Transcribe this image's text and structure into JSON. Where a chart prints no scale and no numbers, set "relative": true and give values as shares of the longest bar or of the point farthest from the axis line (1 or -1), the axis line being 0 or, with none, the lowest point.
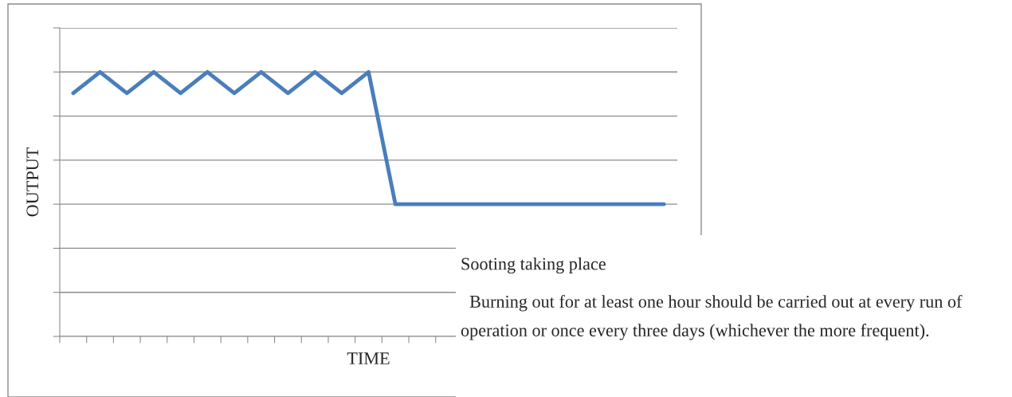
{
  "chart_data": {
    "type": "line",
    "xlabel": "TIME",
    "ylabel": "OUTPUT",
    "categories": [
      null,
      null,
      null,
      null,
      null,
      null,
      null,
      null,
      null,
      null,
      null,
      null,
      null,
      null,
      null,
      null,
      null,
      null,
      null,
      null,
      null,
      null,
      null
    ],
    "series": [
      {
        "color": "#4a7ebb",
        "values": [
          0.92,
          1,
          0.92,
          1,
          0.92,
          1,
          0.92,
          1,
          0.92,
          1,
          0.92,
          1,
          0.5,
          0.5,
          0.5,
          0.5,
          0.5,
          0.5,
          0.5,
          0.5,
          0.5,
          0.5,
          0.5
        ]
      }
    ],
    "relative": true,
    "grid": "y",
    "tick_labels": false,
    "marker": "none",
    "line_style": "solid",
    "annotations": [
      "Sooting taking place",
      "  Burning out for at least one hour should be carried out at every run of operation or once every three days (whichever the more frequent)."
    ]
  }
}
